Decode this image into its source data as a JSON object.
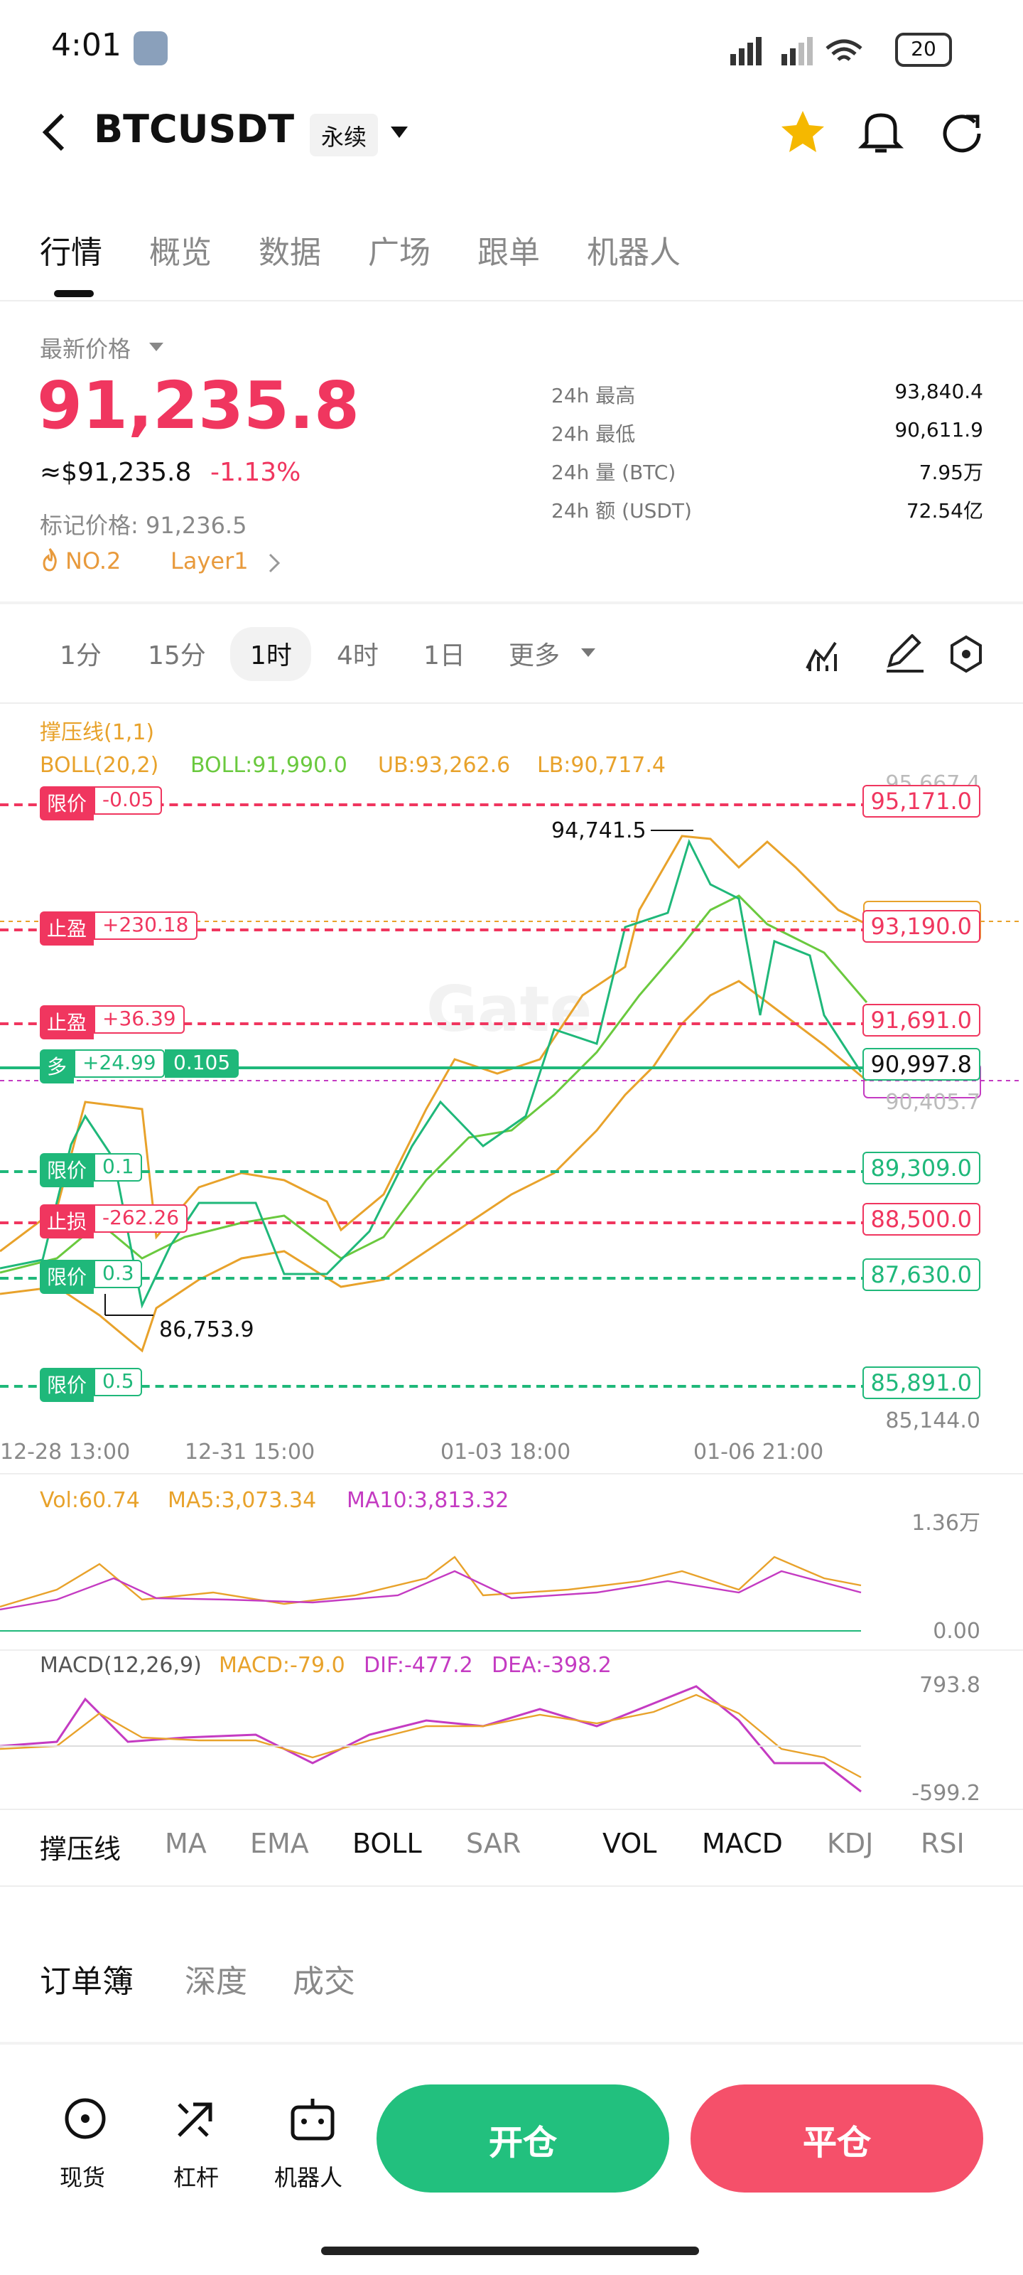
{
  "status_bar": {
    "time": "4:01",
    "battery": "20"
  },
  "header": {
    "symbol": "BTCUSDT",
    "contract": "永续"
  },
  "tabs": [
    "行情",
    "概览",
    "数据",
    "广场",
    "跟单",
    "机器人"
  ],
  "price": {
    "label": "最新价格",
    "last": "91,235.8",
    "usd": "≈$91,235.8",
    "change": "-1.13%",
    "mark": "标记价格: 91,236.5",
    "tags": [
      "NO.2",
      "Layer1"
    ]
  },
  "stats": [
    {
      "label": "24h  最高",
      "value": "93,840.4"
    },
    {
      "label": "24h  最低",
      "value": "90,611.9"
    },
    {
      "label": "24h  量 (BTC)",
      "value": "7.95万"
    },
    {
      "label": "24h  额 (USDT)",
      "value": "72.54亿"
    }
  ],
  "timeframes": [
    "1分",
    "15分",
    "1时",
    "4时",
    "1日",
    "更多"
  ],
  "chart": {
    "indicator": "撑压线(1,1)",
    "boll": [
      "BOLL(20,2)",
      "BOLL:91,990.0",
      "UB:93,262.6",
      "LB:90,717.4"
    ],
    "high_label": "94,741.5",
    "low_label": "86,753.9",
    "axis_labels": [
      "95,667.4",
      "90,405.7",
      "85,144.0"
    ],
    "orders": [
      {
        "type": "限价",
        "delta": "-0.05",
        "price": "95,171.0"
      },
      {
        "type": "止盈",
        "delta": "+230.18",
        "price": "93,190.0"
      },
      {
        "type": "止盈",
        "delta": "+36.39",
        "price": "91,691.0"
      },
      {
        "type": "多",
        "delta": "+24.99",
        "size": "0.105",
        "price": "90,997.8"
      },
      {
        "type": "限价",
        "delta": "0.1",
        "price": "89,309.0"
      },
      {
        "type": "止损",
        "delta": "-262.26",
        "price": "88,500.0"
      },
      {
        "type": "限价",
        "delta": "0.3",
        "price": "87,630.0"
      },
      {
        "type": "限价",
        "delta": "0.5",
        "price": "85,891.0"
      }
    ],
    "x_labels": [
      "12-28 13:00",
      "12-31 15:00",
      "01-03 18:00",
      "01-06 21:00"
    ]
  },
  "volume": {
    "labels": [
      "Vol:60.74",
      "MA5:3,073.34",
      "MA10:3,813.32"
    ],
    "axis": [
      "1.36万",
      "0.00"
    ]
  },
  "macd": {
    "labels": [
      "MACD(12,26,9)",
      "MACD:-79.0",
      "DIF:-477.2",
      "DEA:-398.2"
    ],
    "axis": [
      "793.8",
      "-599.2"
    ]
  },
  "indicator_tabs": [
    "撑压线",
    "MA",
    "EMA",
    "BOLL",
    "SAR",
    "VOL",
    "MACD",
    "KDJ",
    "RSI"
  ],
  "book_tabs": [
    "订单簿",
    "深度",
    "成交"
  ],
  "bottom_nav": [
    "现货",
    "杠杆",
    "机器人"
  ],
  "actions": [
    "开仓",
    "平仓"
  ]
}
